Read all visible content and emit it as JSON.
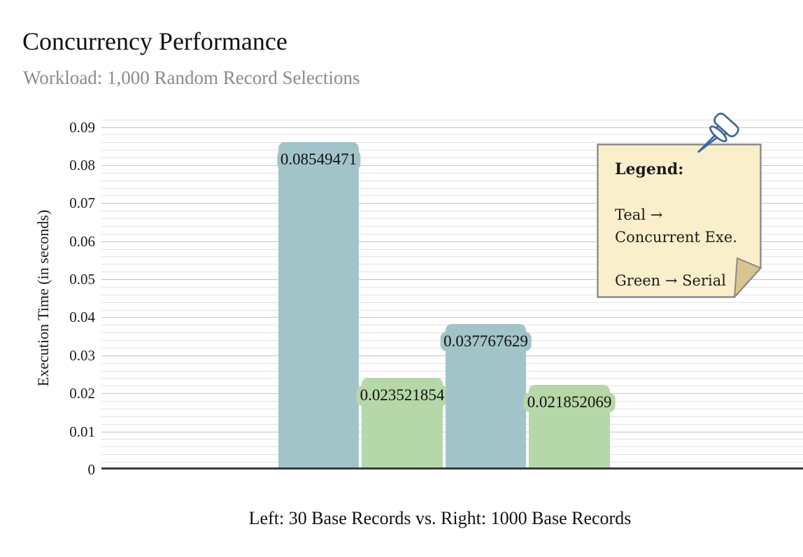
{
  "header": {
    "title": "Concurrency Performance",
    "subtitle": "Workload: 1,000 Random Record Selections"
  },
  "chart_data": {
    "type": "bar",
    "title": "Concurrency Performance",
    "subtitle": "Workload: 1,000 Random Record Selections",
    "ylabel": "Execution Time (in seconds)",
    "xlabel": "Left: 30 Base Records vs. Right: 1000 Base Records",
    "ylim": [
      0,
      0.09
    ],
    "ytick_step": 0.01,
    "minor_grid_step": 0.002,
    "grid": true,
    "ytick_labels": [
      "0",
      "0.01",
      "0.02",
      "0.03",
      "0.04",
      "0.05",
      "0.06",
      "0.07",
      "0.08",
      "0.09"
    ],
    "groups": [
      "30 Base Records",
      "1000 Base Records"
    ],
    "series": [
      {
        "name": "Concurrent Exe.",
        "color_name": "teal",
        "values": [
          0.08549471,
          0.037767629
        ]
      },
      {
        "name": "Serial",
        "color_name": "green",
        "values": [
          0.023521854,
          0.021852069
        ]
      }
    ],
    "bars": [
      {
        "label": "0.08549471",
        "value": 0.08549471,
        "series": "Concurrent Exe.",
        "color": "#a2c4c9"
      },
      {
        "label": "0.023521854",
        "value": 0.023521854,
        "series": "Serial",
        "color": "#b6d7a8"
      },
      {
        "label": "0.037767629",
        "value": 0.037767629,
        "series": "Concurrent Exe.",
        "color": "#a2c4c9"
      },
      {
        "label": "0.021852069",
        "value": 0.021852069,
        "series": "Serial",
        "color": "#b6d7a8"
      }
    ],
    "legend_position": "upper right"
  },
  "legend_note": {
    "title": "Legend:",
    "line1": "Teal →",
    "line2": "Concurrent Exe.",
    "line3": "Green → Serial",
    "background": "#f9efca",
    "border_color": "#8a8a8a",
    "fold_color": "#d8c48e",
    "pin_icon": "pushpin-icon",
    "pin_color": "#3c6a99"
  },
  "colors": {
    "teal_bar": "#a2c4c9",
    "green_bar": "#b6d7a8",
    "major_grid": "#c6c6c6",
    "minor_grid": "#e2e2e2",
    "axis_line": "#3b3b3b",
    "subtitle_text": "#8b8b8b"
  }
}
